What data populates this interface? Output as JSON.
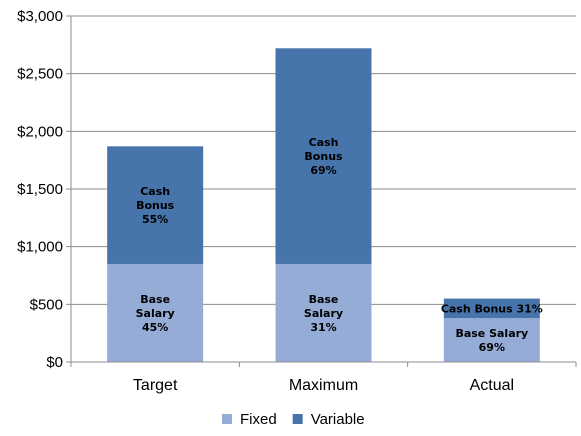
{
  "chart_data": {
    "type": "bar",
    "stacked": true,
    "categories": [
      "Target",
      "Maximum",
      "Actual"
    ],
    "series": [
      {
        "name": "Fixed",
        "color": "#95ADD6",
        "values": [
          850,
          850,
          380
        ],
        "labels": [
          [
            "Base",
            "Salary",
            "45%"
          ],
          [
            "Base",
            "Salary",
            "31%"
          ],
          [
            "Base Salary",
            "69%"
          ]
        ]
      },
      {
        "name": "Variable",
        "color": "#4774AA",
        "values": [
          1020,
          1870,
          170
        ],
        "labels": [
          [
            "Cash",
            "Bonus",
            "55%"
          ],
          [
            "Cash",
            "Bonus",
            "69%"
          ],
          [
            "Cash Bonus 31%"
          ]
        ]
      }
    ],
    "ylim": [
      0,
      3000
    ],
    "yticks": [
      0,
      500,
      1000,
      1500,
      2000,
      2500,
      3000
    ],
    "ytick_labels": [
      "$0",
      "$500",
      "$1,000",
      "$1,500",
      "$2,000",
      "$2,500",
      "$3,000"
    ],
    "grid": true,
    "legend_position": "bottom"
  }
}
